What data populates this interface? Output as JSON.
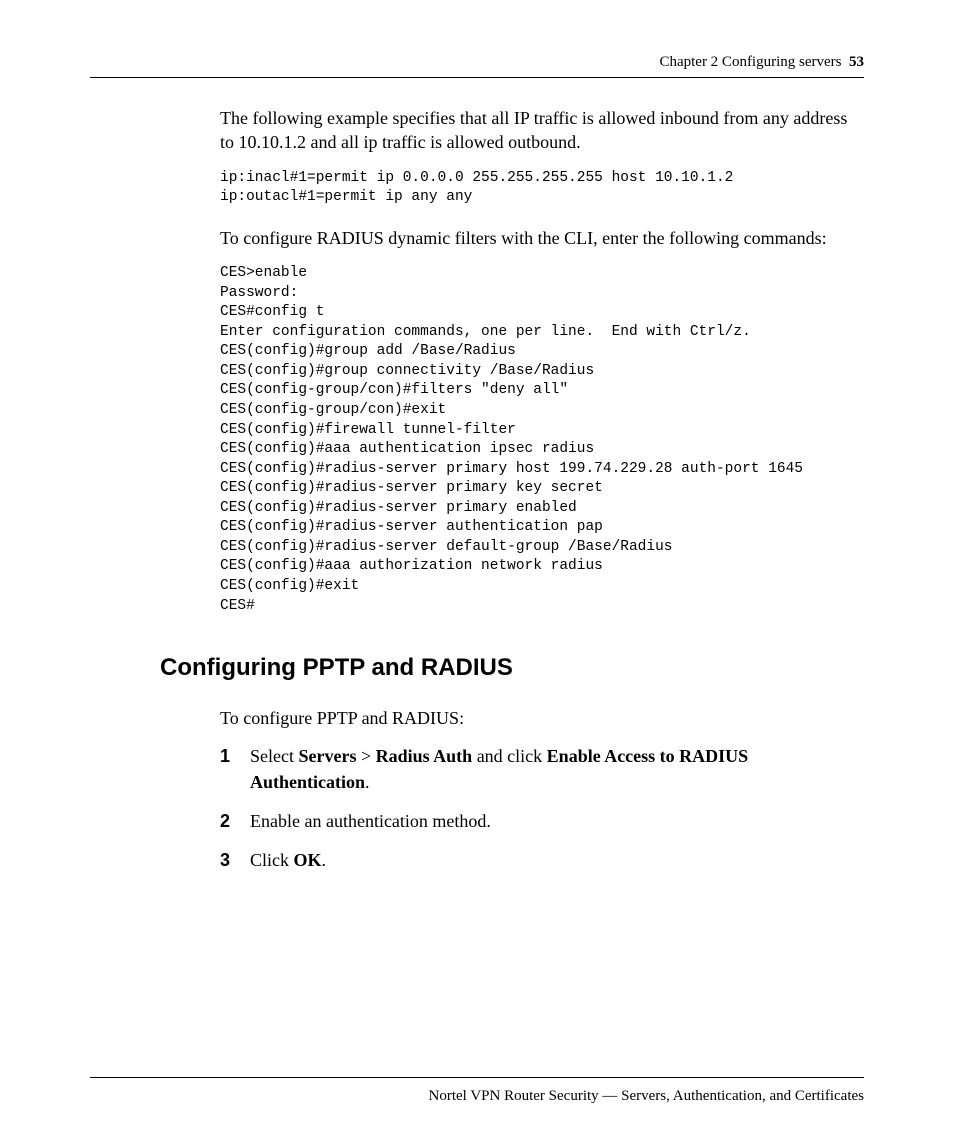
{
  "header": {
    "chapter_label": "Chapter 2  Configuring servers",
    "page_number": "53"
  },
  "para1": "The following example specifies that all IP traffic is allowed inbound from any address to 10.10.1.2 and all ip traffic is allowed outbound.",
  "code1": "ip:inacl#1=permit ip 0.0.0.0 255.255.255.255 host 10.10.1.2\nip:outacl#1=permit ip any any",
  "para2": "To configure RADIUS dynamic filters with the CLI, enter the following commands:",
  "code2": "CES>enable\nPassword:\nCES#config t\nEnter configuration commands, one per line.  End with Ctrl/z.\nCES(config)#group add /Base/Radius\nCES(config)#group connectivity /Base/Radius\nCES(config-group/con)#filters \"deny all\"\nCES(config-group/con)#exit\nCES(config)#firewall tunnel-filter\nCES(config)#aaa authentication ipsec radius\nCES(config)#radius-server primary host 199.74.229.28 auth-port 1645\nCES(config)#radius-server primary key secret\nCES(config)#radius-server primary enabled\nCES(config)#radius-server authentication pap\nCES(config)#radius-server default-group /Base/Radius\nCES(config)#aaa authorization network radius\nCES(config)#exit\nCES#",
  "section_heading": "Configuring PPTP and RADIUS",
  "para3": "To configure PPTP and RADIUS:",
  "steps": {
    "s1": {
      "num": "1",
      "t1": "Select ",
      "b1": "Servers",
      "t2": " > ",
      "b2": "Radius Auth",
      "t3": " and click ",
      "b3": "Enable Access to RADIUS Authentication",
      "t4": "."
    },
    "s2": {
      "num": "2",
      "text": "Enable an authentication method."
    },
    "s3": {
      "num": "3",
      "t1": "Click ",
      "b1": "OK",
      "t2": "."
    }
  },
  "footer": "Nortel VPN Router Security — Servers, Authentication, and Certificates"
}
